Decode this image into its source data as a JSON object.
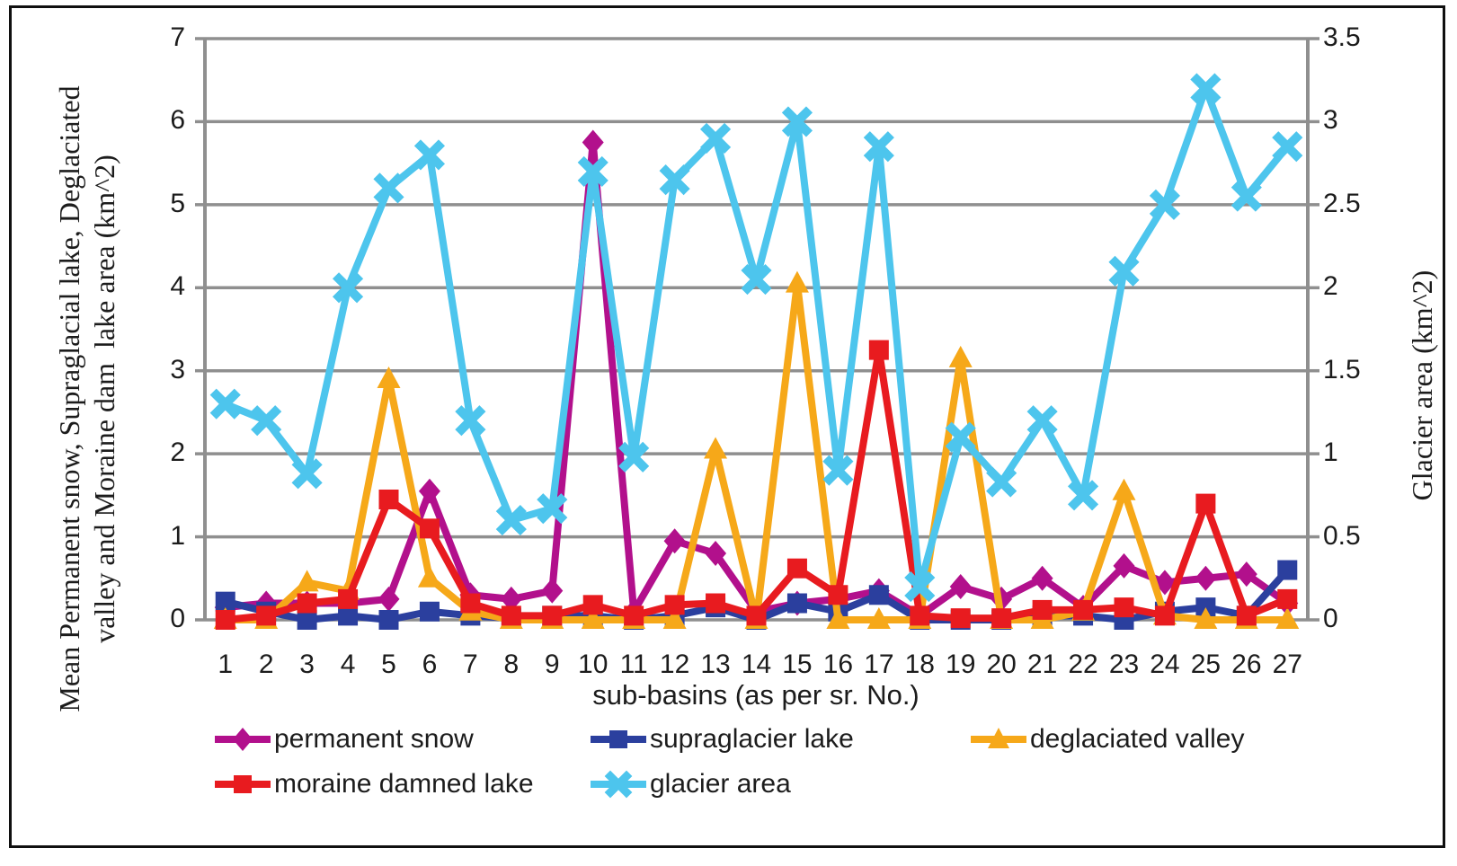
{
  "figure": {
    "x_axis_title": "sub-basins (as per sr. No.)",
    "y_left_title_line1": "Mean Permanent snow, Supraglacial lake, Deglaciated",
    "y_left_title_line2": "valley and Moraine dam  lake area (km^2)",
    "y_right_title": "Glacier area (km^2)",
    "y_left_ticks": [
      "0",
      "1",
      "2",
      "3",
      "4",
      "5",
      "6",
      "7"
    ],
    "y_right_ticks": [
      "0",
      "0.5",
      "1",
      "1.5",
      "2",
      "2.5",
      "3",
      "3.5"
    ],
    "x_ticks": [
      "1",
      "2",
      "3",
      "4",
      "5",
      "6",
      "7",
      "8",
      "9",
      "10",
      "11",
      "12",
      "13",
      "14",
      "15",
      "16",
      "17",
      "18",
      "19",
      "20",
      "21",
      "22",
      "23",
      "24",
      "25",
      "26",
      "27"
    ]
  },
  "colors": {
    "permanent_snow": "#b2108c",
    "supraglacier_lake": "#2b3f9e",
    "deglaciated_valley": "#f6a819",
    "moraine_damned_lake": "#e81b1f",
    "glacier_area": "#4dc5ed",
    "gridline": "#8f8f8f",
    "text": "#1c1c1c",
    "frame": "#101010"
  },
  "legend": [
    {
      "label": "permanent snow",
      "marker": "diamond",
      "color": "#b2108c",
      "row": 1,
      "col": 1
    },
    {
      "label": "supraglacier lake",
      "marker": "square",
      "color": "#2b3f9e",
      "row": 1,
      "col": 2
    },
    {
      "label": "deglaciated valley",
      "marker": "triangle",
      "color": "#f6a819",
      "row": 1,
      "col": 3
    },
    {
      "label": "moraine damned lake",
      "marker": "square",
      "color": "#e81b1f",
      "row": 2,
      "col": 1
    },
    {
      "label": "glacier area",
      "marker": "x",
      "color": "#4dc5ed",
      "row": 2,
      "col": 2
    }
  ],
  "chart_data": {
    "type": "line",
    "x": [
      1,
      2,
      3,
      4,
      5,
      6,
      7,
      8,
      9,
      10,
      11,
      12,
      13,
      14,
      15,
      16,
      17,
      18,
      19,
      20,
      21,
      22,
      23,
      24,
      25,
      26,
      27
    ],
    "xlabel": "sub-basins (as per sr. No.)",
    "ylabel_left": "Mean Permanent snow, Supraglacial lake, Deglaciated valley and Moraine dam lake area (km^2)",
    "ylabel_right": "Glacier area (km^2)",
    "ylim_left": [
      0,
      7
    ],
    "ylim_right": [
      0,
      3.5
    ],
    "grid": true,
    "legend_position": "bottom",
    "series": [
      {
        "name": "permanent snow",
        "axis": "left",
        "marker": "diamond",
        "color": "#b2108c",
        "values": [
          0.15,
          0.2,
          0.2,
          0.2,
          0.25,
          1.55,
          0.3,
          0.25,
          0.35,
          5.75,
          0.1,
          0.95,
          0.8,
          0.1,
          0.2,
          0.25,
          0.35,
          0.05,
          0.4,
          0.25,
          0.5,
          0.15,
          0.65,
          0.45,
          0.5,
          0.55,
          0.2
        ]
      },
      {
        "name": "supraglacier lake",
        "axis": "left",
        "marker": "square",
        "color": "#2b3f9e",
        "values": [
          0.22,
          0.1,
          0,
          0.05,
          0,
          0.1,
          0.05,
          0.02,
          0.05,
          0.05,
          0,
          0.05,
          0.15,
          0,
          0.2,
          0.1,
          0.3,
          0,
          0,
          0,
          0.05,
          0.05,
          0,
          0.1,
          0.15,
          0.05,
          0.6
        ]
      },
      {
        "name": "deglaciated valley",
        "axis": "left",
        "marker": "triangle",
        "color": "#f6a819",
        "values": [
          0,
          0,
          0.45,
          0.35,
          2.9,
          0.5,
          0.1,
          0,
          0,
          0,
          0,
          0,
          2.05,
          0,
          4.05,
          0,
          0,
          0,
          3.15,
          0,
          0,
          0.1,
          1.55,
          0.05,
          0,
          0,
          0
        ]
      },
      {
        "name": "moraine damned lake",
        "axis": "left",
        "marker": "square",
        "color": "#e81b1f",
        "values": [
          0,
          0.05,
          0.2,
          0.25,
          1.45,
          1.1,
          0.2,
          0.05,
          0.05,
          0.18,
          0.05,
          0.18,
          0.2,
          0.05,
          0.62,
          0.3,
          3.25,
          0.05,
          0.02,
          0.02,
          0.12,
          0.12,
          0.15,
          0.05,
          1.4,
          0.05,
          0.25
        ]
      },
      {
        "name": "glacier area",
        "axis": "right",
        "marker": "x",
        "color": "#4dc5ed",
        "values": [
          1.3,
          1.2,
          0.88,
          2.0,
          2.6,
          2.8,
          1.2,
          0.6,
          0.67,
          2.7,
          0.98,
          2.65,
          2.9,
          2.05,
          3.0,
          0.9,
          2.85,
          0.2,
          1.1,
          0.83,
          1.2,
          0.75,
          2.1,
          2.5,
          3.2,
          2.55,
          2.85
        ]
      }
    ]
  }
}
